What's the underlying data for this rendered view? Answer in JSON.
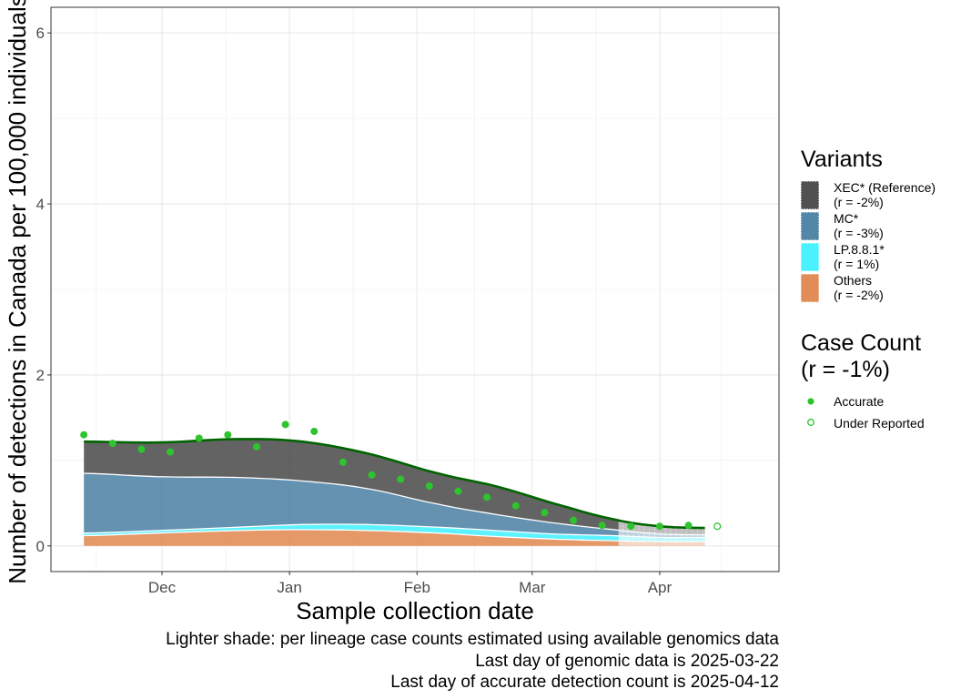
{
  "chart_data": {
    "type": "area",
    "xlabel": "Sample collection date",
    "ylabel": "Number of detections in Canada per 100,000 individuals",
    "ylim": [
      -0.3,
      6.3
    ],
    "xlim": [
      "2024-11-04",
      "2025-04-30"
    ],
    "grid": true,
    "legend_position": "right",
    "x_ticks": [
      {
        "date": "2024-12-01",
        "label": "Dec"
      },
      {
        "date": "2025-01-01",
        "label": "Jan"
      },
      {
        "date": "2025-02-01",
        "label": "Feb"
      },
      {
        "date": "2025-03-01",
        "label": "Mar"
      },
      {
        "date": "2025-04-01",
        "label": "Apr"
      }
    ],
    "y_ticks": [
      0,
      2,
      4,
      6
    ],
    "dates": [
      "2024-11-12",
      "2024-11-30",
      "2024-12-20",
      "2025-01-04",
      "2025-01-20",
      "2025-02-06",
      "2025-02-20",
      "2025-03-06",
      "2025-03-21",
      "2025-04-01",
      "2025-04-12"
    ],
    "series": [
      {
        "name": "Others",
        "legend_label": "Others",
        "r_label": "(r = -2%)",
        "color": "#E0864E",
        "values": [
          0.12,
          0.15,
          0.18,
          0.19,
          0.18,
          0.15,
          0.11,
          0.08,
          0.06,
          0.05,
          0.05
        ]
      },
      {
        "name": "LP.8.8.1*",
        "legend_label": "LP.8.8.1*",
        "r_label": "(r = 1%)",
        "color": "#40F0FF",
        "values": [
          0.03,
          0.03,
          0.04,
          0.06,
          0.07,
          0.07,
          0.07,
          0.06,
          0.06,
          0.05,
          0.05
        ]
      },
      {
        "name": "MC*",
        "legend_label": "MC*",
        "r_label": "(r = -3%)",
        "color": "#4A7FA2",
        "values": [
          0.7,
          0.63,
          0.58,
          0.51,
          0.42,
          0.27,
          0.19,
          0.13,
          0.07,
          0.04,
          0.03
        ]
      },
      {
        "name": "XEC* (Reference)",
        "legend_label": "XEC* (Reference)",
        "r_label": "(r = -2%)",
        "color": "#484848",
        "values": [
          0.37,
          0.4,
          0.45,
          0.46,
          0.41,
          0.36,
          0.33,
          0.23,
          0.12,
          0.09,
          0.08
        ]
      }
    ],
    "total_line": {
      "color": "#006400"
    },
    "genomic_cutoff_date": "2025-03-22",
    "accurate_cutoff_date": "2025-04-12",
    "case_count": {
      "legend_title_line1": "Case Count",
      "legend_title_line2": "(r = -1%)",
      "color": "#2EC42E",
      "accurate_label": "Accurate",
      "under_reported_label": "Under Reported",
      "accurate_points": [
        {
          "x": "2024-11-12",
          "y": 1.3
        },
        {
          "x": "2024-11-19",
          "y": 1.2
        },
        {
          "x": "2024-11-26",
          "y": 1.13
        },
        {
          "x": "2024-12-03",
          "y": 1.1
        },
        {
          "x": "2024-12-10",
          "y": 1.26
        },
        {
          "x": "2024-12-17",
          "y": 1.3
        },
        {
          "x": "2024-12-24",
          "y": 1.16
        },
        {
          "x": "2024-12-31",
          "y": 1.42
        },
        {
          "x": "2025-01-07",
          "y": 1.34
        },
        {
          "x": "2025-01-14",
          "y": 0.98
        },
        {
          "x": "2025-01-21",
          "y": 0.83
        },
        {
          "x": "2025-01-28",
          "y": 0.78
        },
        {
          "x": "2025-02-04",
          "y": 0.7
        },
        {
          "x": "2025-02-11",
          "y": 0.64
        },
        {
          "x": "2025-02-18",
          "y": 0.57
        },
        {
          "x": "2025-02-25",
          "y": 0.47
        },
        {
          "x": "2025-03-04",
          "y": 0.39
        },
        {
          "x": "2025-03-11",
          "y": 0.3
        },
        {
          "x": "2025-03-18",
          "y": 0.24
        },
        {
          "x": "2025-03-25",
          "y": 0.23
        },
        {
          "x": "2025-04-01",
          "y": 0.23
        },
        {
          "x": "2025-04-08",
          "y": 0.24
        }
      ],
      "under_reported_points": [
        {
          "x": "2025-04-15",
          "y": 0.23
        }
      ]
    },
    "legend_variants_title": "Variants"
  },
  "caption": {
    "line1": "Lighter shade: per lineage case counts estimated using available genomics data",
    "line2": "Last day of genomic data is 2025-03-22",
    "line3": "Last day of accurate detection count is 2025-04-12"
  }
}
